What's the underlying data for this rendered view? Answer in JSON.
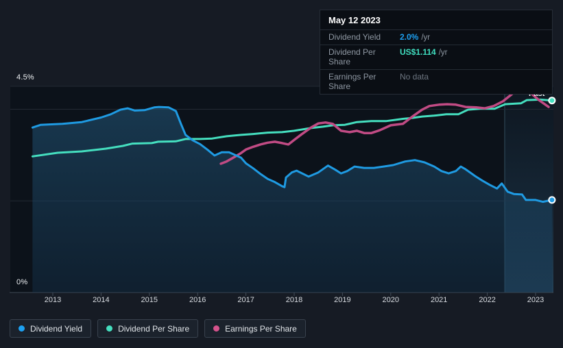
{
  "tooltip": {
    "date": "May 12 2023",
    "rows": [
      {
        "label": "Dividend Yield",
        "value": "2.0%",
        "unit": "/yr",
        "color": "#1da1f2"
      },
      {
        "label": "Dividend Per Share",
        "value": "US$1.114",
        "unit": "/yr",
        "color": "#40dfc0"
      },
      {
        "label": "Earnings Per Share",
        "value": "No data",
        "unit": "",
        "color": "#6d7681"
      }
    ]
  },
  "legend": {
    "items": [
      {
        "label": "Dividend Yield",
        "color": "#1da1f2"
      },
      {
        "label": "Dividend Per Share",
        "color": "#45dfbf"
      },
      {
        "label": "Earnings Per Share",
        "color": "#d5538c"
      }
    ]
  },
  "chart_data": {
    "type": "line",
    "ylabel_top": "4.5%",
    "ylabel_bottom": "0%",
    "ylim": [
      0,
      4.5
    ],
    "xlim": [
      2012.55,
      2023.37
    ],
    "x_ticks": [
      2013,
      2014,
      2015,
      2016,
      2017,
      2018,
      2019,
      2020,
      2021,
      2022,
      2023
    ],
    "gridlines": [
      4.5,
      4.0,
      2.0,
      0
    ],
    "grid_on": true,
    "legend_position": "bottom-left",
    "past_label": "Past",
    "past_start_year": 2022.36,
    "series": [
      {
        "name": "Dividend Yield",
        "color": "#1f9be3",
        "unit": "%/yr",
        "area": true,
        "end_dot": true,
        "points": [
          [
            2012.58,
            3.6
          ],
          [
            2012.75,
            3.66
          ],
          [
            2013.2,
            3.68
          ],
          [
            2013.6,
            3.72
          ],
          [
            2014.0,
            3.82
          ],
          [
            2014.2,
            3.89
          ],
          [
            2014.4,
            3.99
          ],
          [
            2014.55,
            4.02
          ],
          [
            2014.7,
            3.97
          ],
          [
            2014.9,
            3.98
          ],
          [
            2015.1,
            4.04
          ],
          [
            2015.2,
            4.05
          ],
          [
            2015.4,
            4.04
          ],
          [
            2015.55,
            3.96
          ],
          [
            2015.65,
            3.69
          ],
          [
            2015.75,
            3.44
          ],
          [
            2015.9,
            3.32
          ],
          [
            2016.05,
            3.24
          ],
          [
            2016.2,
            3.12
          ],
          [
            2016.35,
            2.99
          ],
          [
            2016.5,
            3.06
          ],
          [
            2016.65,
            3.06
          ],
          [
            2016.9,
            2.94
          ],
          [
            2017.0,
            2.82
          ],
          [
            2017.15,
            2.71
          ],
          [
            2017.3,
            2.59
          ],
          [
            2017.45,
            2.48
          ],
          [
            2017.6,
            2.41
          ],
          [
            2017.75,
            2.32
          ],
          [
            2017.8,
            2.3
          ],
          [
            2017.83,
            2.51
          ],
          [
            2017.95,
            2.62
          ],
          [
            2018.05,
            2.66
          ],
          [
            2018.3,
            2.53
          ],
          [
            2018.5,
            2.62
          ],
          [
            2018.7,
            2.77
          ],
          [
            2018.85,
            2.68
          ],
          [
            2018.97,
            2.6
          ],
          [
            2019.1,
            2.65
          ],
          [
            2019.25,
            2.75
          ],
          [
            2019.45,
            2.72
          ],
          [
            2019.65,
            2.72
          ],
          [
            2019.85,
            2.75
          ],
          [
            2020.05,
            2.78
          ],
          [
            2020.3,
            2.86
          ],
          [
            2020.5,
            2.89
          ],
          [
            2020.7,
            2.84
          ],
          [
            2020.9,
            2.75
          ],
          [
            2021.05,
            2.65
          ],
          [
            2021.2,
            2.6
          ],
          [
            2021.35,
            2.65
          ],
          [
            2021.45,
            2.75
          ],
          [
            2021.55,
            2.69
          ],
          [
            2021.75,
            2.54
          ],
          [
            2021.9,
            2.44
          ],
          [
            2022.05,
            2.35
          ],
          [
            2022.2,
            2.27
          ],
          [
            2022.3,
            2.38
          ],
          [
            2022.42,
            2.2
          ],
          [
            2022.55,
            2.15
          ],
          [
            2022.72,
            2.14
          ],
          [
            2022.8,
            2.02
          ],
          [
            2023.0,
            2.02
          ],
          [
            2023.15,
            1.98
          ],
          [
            2023.34,
            2.02
          ]
        ]
      },
      {
        "name": "Dividend Per Share",
        "color": "#45dfbf",
        "unit": "US$/yr",
        "area": false,
        "end_dot": true,
        "points": [
          [
            2012.58,
            2.97
          ],
          [
            2013.1,
            3.05
          ],
          [
            2013.6,
            3.08
          ],
          [
            2014.1,
            3.14
          ],
          [
            2014.45,
            3.2
          ],
          [
            2014.65,
            3.25
          ],
          [
            2015.05,
            3.26
          ],
          [
            2015.18,
            3.29
          ],
          [
            2015.55,
            3.3
          ],
          [
            2015.75,
            3.35
          ],
          [
            2016.05,
            3.35
          ],
          [
            2016.3,
            3.36
          ],
          [
            2016.6,
            3.41
          ],
          [
            2016.9,
            3.44
          ],
          [
            2017.15,
            3.46
          ],
          [
            2017.45,
            3.49
          ],
          [
            2017.75,
            3.5
          ],
          [
            2018.0,
            3.53
          ],
          [
            2018.35,
            3.59
          ],
          [
            2018.6,
            3.62
          ],
          [
            2018.8,
            3.65
          ],
          [
            2019.05,
            3.66
          ],
          [
            2019.3,
            3.72
          ],
          [
            2019.6,
            3.74
          ],
          [
            2019.9,
            3.74
          ],
          [
            2020.25,
            3.79
          ],
          [
            2020.45,
            3.81
          ],
          [
            2020.65,
            3.84
          ],
          [
            2020.9,
            3.86
          ],
          [
            2021.15,
            3.89
          ],
          [
            2021.4,
            3.89
          ],
          [
            2021.6,
            3.99
          ],
          [
            2021.85,
            4.01
          ],
          [
            2022.15,
            4.01
          ],
          [
            2022.37,
            4.11
          ],
          [
            2022.7,
            4.13
          ],
          [
            2022.82,
            4.2
          ],
          [
            2023.1,
            4.21
          ],
          [
            2023.34,
            4.19
          ]
        ]
      },
      {
        "name": "Earnings Per Share",
        "color": "#c14b84",
        "unit": "US$/yr",
        "area": false,
        "end_dot": false,
        "points": [
          [
            2016.48,
            2.81
          ],
          [
            2016.6,
            2.86
          ],
          [
            2016.75,
            2.95
          ],
          [
            2016.88,
            3.03
          ],
          [
            2017.0,
            3.12
          ],
          [
            2017.15,
            3.18
          ],
          [
            2017.3,
            3.23
          ],
          [
            2017.45,
            3.27
          ],
          [
            2017.6,
            3.29
          ],
          [
            2017.75,
            3.26
          ],
          [
            2017.88,
            3.23
          ],
          [
            2018.0,
            3.33
          ],
          [
            2018.15,
            3.45
          ],
          [
            2018.35,
            3.6
          ],
          [
            2018.5,
            3.69
          ],
          [
            2018.65,
            3.71
          ],
          [
            2018.8,
            3.68
          ],
          [
            2018.97,
            3.53
          ],
          [
            2019.15,
            3.5
          ],
          [
            2019.3,
            3.53
          ],
          [
            2019.45,
            3.48
          ],
          [
            2019.6,
            3.48
          ],
          [
            2019.77,
            3.54
          ],
          [
            2020.0,
            3.65
          ],
          [
            2020.25,
            3.68
          ],
          [
            2020.45,
            3.84
          ],
          [
            2020.65,
            3.99
          ],
          [
            2020.8,
            4.07
          ],
          [
            2021.0,
            4.1
          ],
          [
            2021.17,
            4.11
          ],
          [
            2021.35,
            4.1
          ],
          [
            2021.55,
            4.05
          ],
          [
            2021.77,
            4.04
          ],
          [
            2021.95,
            4.02
          ],
          [
            2022.13,
            4.07
          ],
          [
            2022.32,
            4.17
          ],
          [
            2022.5,
            4.32
          ],
          [
            2022.65,
            4.47
          ],
          [
            2022.74,
            4.49
          ],
          [
            2022.88,
            4.37
          ],
          [
            2023.07,
            4.2
          ],
          [
            2023.27,
            4.05
          ]
        ]
      }
    ]
  }
}
